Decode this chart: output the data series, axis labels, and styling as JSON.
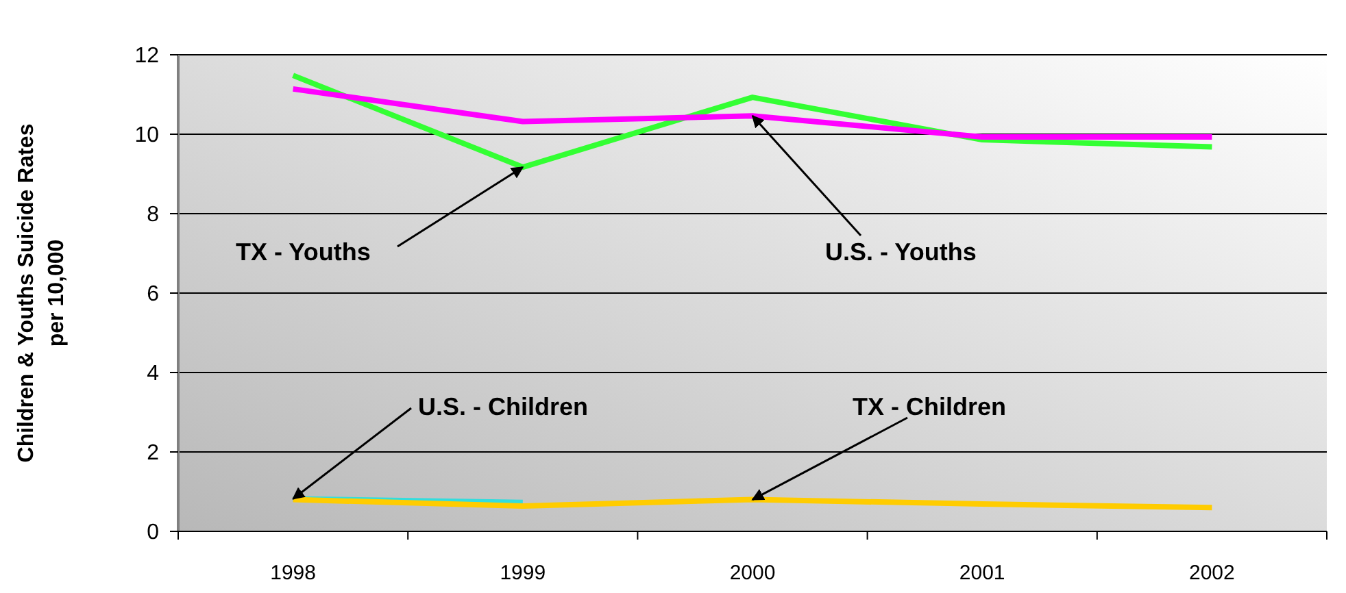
{
  "chart_data": {
    "type": "line",
    "ylabel": "Children & Youths Suicide Rates\nper 10,000",
    "categories": [
      "1998",
      "1999",
      "2000",
      "2001",
      "2002"
    ],
    "series": [
      {
        "color": "#33ff33",
        "values": [
          11.48,
          9.17,
          10.93,
          9.86,
          9.68
        ]
      },
      {
        "color": "#ff00ff",
        "values": [
          11.14,
          10.32,
          10.46,
          9.93,
          9.93
        ]
      },
      {
        "color": "#33dddd",
        "values": [
          0.82,
          0.73,
          null,
          null,
          null
        ]
      },
      {
        "color": "#ffcc00",
        "values": [
          0.8,
          0.64,
          0.8,
          0.69,
          0.6
        ]
      }
    ],
    "ylim": [
      0,
      12
    ],
    "yticks": [
      0,
      2,
      4,
      6,
      8,
      10,
      12
    ],
    "grid": "y",
    "marker": "none",
    "line_style": "solid",
    "annotations": [
      {
        "text": "TX - Youths",
        "x": "1999",
        "y": 9.17
      },
      {
        "text": "U.S. - Youths",
        "x": "2000",
        "y": 10.46
      },
      {
        "text": "U.S. - Children",
        "x": "1998",
        "y": 0.82
      },
      {
        "text": "TX - Children",
        "x": "2000",
        "y": 0.8
      }
    ]
  }
}
